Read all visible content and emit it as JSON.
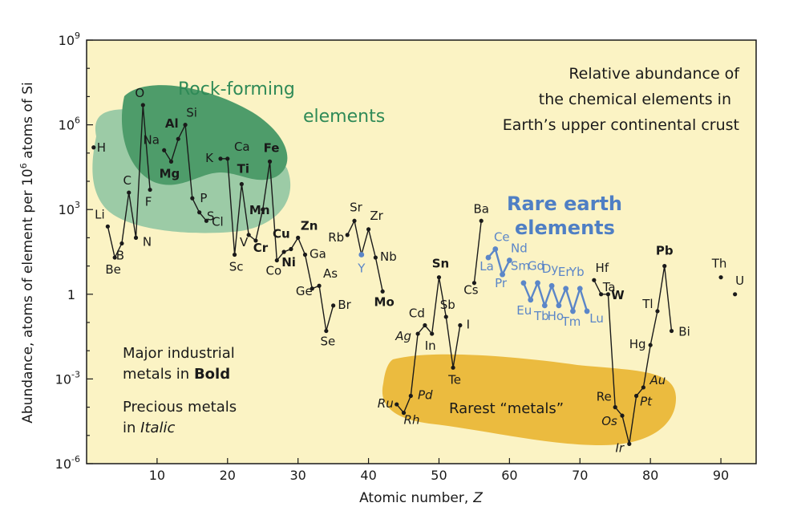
{
  "chart_data": {
    "type": "line",
    "title": [
      "Relative abundance of",
      "the chemical elements in",
      "Earth’s upper continental crust"
    ],
    "xlabel_prefix": "Atomic number,",
    "xlabel_symbol": "Z",
    "ylabel_prefix": "Abundance, atoms of element per 10",
    "ylabel_sup": "6",
    "ylabel_suffix": " atoms of Si",
    "xlim": [
      0,
      95
    ],
    "ylim_log10": [
      -6,
      9
    ],
    "y_scale": "log",
    "xticks": [
      {
        "value": 10,
        "label": "10"
      },
      {
        "value": 20,
        "label": "20"
      },
      {
        "value": 30,
        "label": "30"
      },
      {
        "value": 40,
        "label": "40"
      },
      {
        "value": 50,
        "label": "50"
      },
      {
        "value": 60,
        "label": "60"
      },
      {
        "value": 70,
        "label": "70"
      },
      {
        "value": 80,
        "label": "80"
      },
      {
        "value": 90,
        "label": "90"
      }
    ],
    "yticks": [
      {
        "log10": 9,
        "base": "10",
        "exp": "9"
      },
      {
        "log10": 6,
        "base": "10",
        "exp": "6"
      },
      {
        "log10": 3,
        "base": "10",
        "exp": "3"
      },
      {
        "log10": 0,
        "base": "1",
        "exp": ""
      },
      {
        "log10": -3,
        "base": "10",
        "exp": "-3"
      },
      {
        "log10": -6,
        "base": "10",
        "exp": "-6"
      }
    ],
    "regions": {
      "rock_forming_label": [
        "Rock-forming",
        "elements"
      ],
      "rare_earth_label": [
        "Rare earth",
        "elements"
      ],
      "rarest_label": "Rarest “metals”"
    },
    "notes": {
      "industrial_line1": "Major industrial",
      "industrial_line2_prefix": "metals in ",
      "industrial_line2_bold": "Bold",
      "precious_line1": "Precious metals",
      "precious_line2_prefix": "in ",
      "precious_line2_italic": "Italic"
    },
    "series": [
      {
        "points": [
          {
            "z": 3,
            "sym": "Li",
            "log": 2.4
          },
          {
            "z": 4,
            "sym": "Be",
            "log": 1.3
          },
          {
            "z": 5,
            "sym": "B",
            "log": 1.8
          },
          {
            "z": 6,
            "sym": "C",
            "log": 3.6
          },
          {
            "z": 7,
            "sym": "N",
            "log": 2.0
          },
          {
            "z": 8,
            "sym": "O",
            "log": 6.7
          },
          {
            "z": 9,
            "sym": "F",
            "log": 3.7
          }
        ]
      },
      {
        "points": [
          {
            "z": 11,
            "sym": "Na",
            "log": 5.1
          },
          {
            "z": 12,
            "sym": "Mg",
            "log": 4.7
          },
          {
            "z": 13,
            "sym": "Al",
            "log": 5.5
          },
          {
            "z": 14,
            "sym": "Si",
            "log": 6.0
          },
          {
            "z": 15,
            "sym": "P",
            "log": 3.4
          },
          {
            "z": 16,
            "sym": "S",
            "log": 2.9
          },
          {
            "z": 17,
            "sym": "Cl",
            "log": 2.6
          }
        ]
      },
      {
        "points": [
          {
            "z": 19,
            "sym": "K",
            "log": 4.8
          },
          {
            "z": 20,
            "sym": "Ca",
            "log": 4.8
          },
          {
            "z": 21,
            "sym": "Sc",
            "log": 1.4
          },
          {
            "z": 22,
            "sym": "Ti",
            "log": 3.9
          },
          {
            "z": 23,
            "sym": "V",
            "log": 2.1
          },
          {
            "z": 24,
            "sym": "Cr",
            "log": 1.9
          },
          {
            "z": 25,
            "sym": "Mn",
            "log": 3.0
          },
          {
            "z": 26,
            "sym": "Fe",
            "log": 4.7
          },
          {
            "z": 27,
            "sym": "Co",
            "log": 1.2
          },
          {
            "z": 28,
            "sym": "Ni",
            "log": 1.5
          },
          {
            "z": 29,
            "sym": "Cu",
            "log": 1.6
          },
          {
            "z": 30,
            "sym": "Zn",
            "log": 2.0
          },
          {
            "z": 31,
            "sym": "Ga",
            "log": 1.4
          },
          {
            "z": 32,
            "sym": "Ge",
            "log": 0.2
          },
          {
            "z": 33,
            "sym": "As",
            "log": 0.3
          },
          {
            "z": 34,
            "sym": "Se",
            "log": -1.3
          },
          {
            "z": 35,
            "sym": "Br",
            "log": -0.4
          }
        ]
      },
      {
        "points": [
          {
            "z": 37,
            "sym": "Rb",
            "log": 2.1
          },
          {
            "z": 38,
            "sym": "Sr",
            "log": 2.6
          },
          {
            "z": 39,
            "sym": "Y",
            "log": 1.4
          },
          {
            "z": 40,
            "sym": "Zr",
            "log": 2.3
          },
          {
            "z": 41,
            "sym": "Nb",
            "log": 1.3
          },
          {
            "z": 42,
            "sym": "Mo",
            "log": 0.1
          }
        ]
      },
      {
        "points": [
          {
            "z": 44,
            "sym": "Ru",
            "log": -3.9
          },
          {
            "z": 45,
            "sym": "Rh",
            "log": -4.2
          },
          {
            "z": 46,
            "sym": "Pd",
            "log": -3.6
          },
          {
            "z": 47,
            "sym": "Ag",
            "log": -1.4
          },
          {
            "z": 48,
            "sym": "Cd",
            "log": -1.1
          },
          {
            "z": 49,
            "sym": "In",
            "log": -1.4
          },
          {
            "z": 50,
            "sym": "Sn",
            "log": 0.6
          },
          {
            "z": 51,
            "sym": "Sb",
            "log": -0.8
          },
          {
            "z": 52,
            "sym": "Te",
            "log": -2.6
          },
          {
            "z": 53,
            "sym": "I",
            "log": -1.1
          }
        ]
      },
      {
        "points": [
          {
            "z": 55,
            "sym": "Cs",
            "log": 0.4
          },
          {
            "z": 56,
            "sym": "Ba",
            "log": 2.6
          }
        ]
      },
      {
        "ree": true,
        "points": [
          {
            "z": 57,
            "sym": "La",
            "log": 1.3
          },
          {
            "z": 58,
            "sym": "Ce",
            "log": 1.6
          },
          {
            "z": 59,
            "sym": "Pr",
            "log": 0.7
          },
          {
            "z": 60,
            "sym": "Nd",
            "log": 1.2
          }
        ]
      },
      {
        "ree": true,
        "points": [
          {
            "z": 62,
            "sym": "Sm",
            "log": 0.4
          },
          {
            "z": 63,
            "sym": "Eu",
            "log": -0.2
          },
          {
            "z": 64,
            "sym": "Gd",
            "log": 0.4
          },
          {
            "z": 65,
            "sym": "Tb",
            "log": -0.4
          },
          {
            "z": 66,
            "sym": "Dy",
            "log": 0.3
          },
          {
            "z": 67,
            "sym": "Ho",
            "log": -0.4
          },
          {
            "z": 68,
            "sym": "Er",
            "log": 0.2
          },
          {
            "z": 69,
            "sym": "Tm",
            "log": -0.6
          },
          {
            "z": 70,
            "sym": "Yb",
            "log": 0.2
          },
          {
            "z": 71,
            "sym": "Lu",
            "log": -0.6
          }
        ]
      },
      {
        "points": [
          {
            "z": 72,
            "sym": "Hf",
            "log": 0.5
          },
          {
            "z": 73,
            "sym": "Ta",
            "log": 0.0
          },
          {
            "z": 74,
            "sym": "W",
            "log": 0.0
          },
          {
            "z": 75,
            "sym": "Re",
            "log": -4.0
          },
          {
            "z": 76,
            "sym": "Os",
            "log": -4.3
          },
          {
            "z": 77,
            "sym": "Ir",
            "log": -5.3
          },
          {
            "z": 78,
            "sym": "Pt",
            "log": -3.6
          },
          {
            "z": 79,
            "sym": "Au",
            "log": -3.3
          },
          {
            "z": 80,
            "sym": "Hg",
            "log": -1.8
          },
          {
            "z": 81,
            "sym": "Tl",
            "log": -0.6
          },
          {
            "z": 82,
            "sym": "Pb",
            "log": 1.0
          },
          {
            "z": 83,
            "sym": "Bi",
            "log": -1.3
          }
        ]
      },
      {
        "points": [
          {
            "z": 1,
            "sym": "H",
            "log": 5.2
          }
        ]
      },
      {
        "points": [
          {
            "z": 90,
            "sym": "Th",
            "log": 0.6
          }
        ]
      },
      {
        "points": [
          {
            "z": 92,
            "sym": "U",
            "log": 0.0
          }
        ]
      }
    ],
    "bold_symbols": [
      "Mg",
      "Al",
      "Ti",
      "Fe",
      "Mn",
      "Cr",
      "Cu",
      "Zn",
      "Ni",
      "Mo",
      "Sn",
      "W",
      "Pb"
    ],
    "italic_symbols": [
      "Ru",
      "Rh",
      "Pd",
      "Ag",
      "Os",
      "Ir",
      "Pt",
      "Au"
    ],
    "colors": {
      "plot_background": "#fbf3c4",
      "rock_light": "#9ccba6",
      "rock_dark": "#4e9c6a",
      "rarest_fill": "#ebbb3f",
      "ree_color": "#5b86c8",
      "line_color": "#1a1a1a"
    }
  }
}
